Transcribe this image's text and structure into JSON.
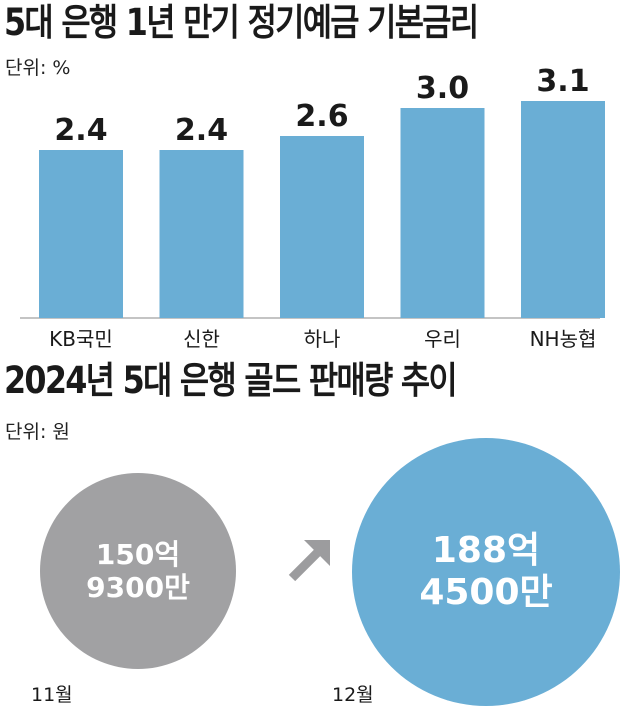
{
  "colors": {
    "bar": "#6aaed5",
    "circle_nov": "#a1a1a3",
    "circle_dec": "#6aaed5"
  },
  "top_chart": {
    "title": "5대 은행 1년 만기 정기예금 기본금리",
    "unit": "단위: %"
  },
  "bottom_chart": {
    "title": "2024년 5대 은행 골드 판매량 추이",
    "unit": "단위: 원",
    "arrow_icon": "arrow-up-right-icon",
    "items": [
      {
        "month": "11월",
        "line1": "150억",
        "line2": "9300만"
      },
      {
        "month": "12월",
        "line1": "188억",
        "line2": "4500만"
      }
    ]
  },
  "chart_data": [
    {
      "type": "bar",
      "title": "5대 은행 1년 만기 정기예금 기본금리",
      "ylabel": "단위: %",
      "categories": [
        "KB국민",
        "신한",
        "하나",
        "우리",
        "NH농협"
      ],
      "values": [
        2.4,
        2.4,
        2.6,
        3.0,
        3.1
      ],
      "grid": false
    },
    {
      "type": "bubble",
      "title": "2024년 5대 은행 골드 판매량 추이",
      "ylabel": "단위: 원",
      "categories": [
        "11월",
        "12월"
      ],
      "values": [
        15093000000,
        18845000000
      ]
    }
  ]
}
